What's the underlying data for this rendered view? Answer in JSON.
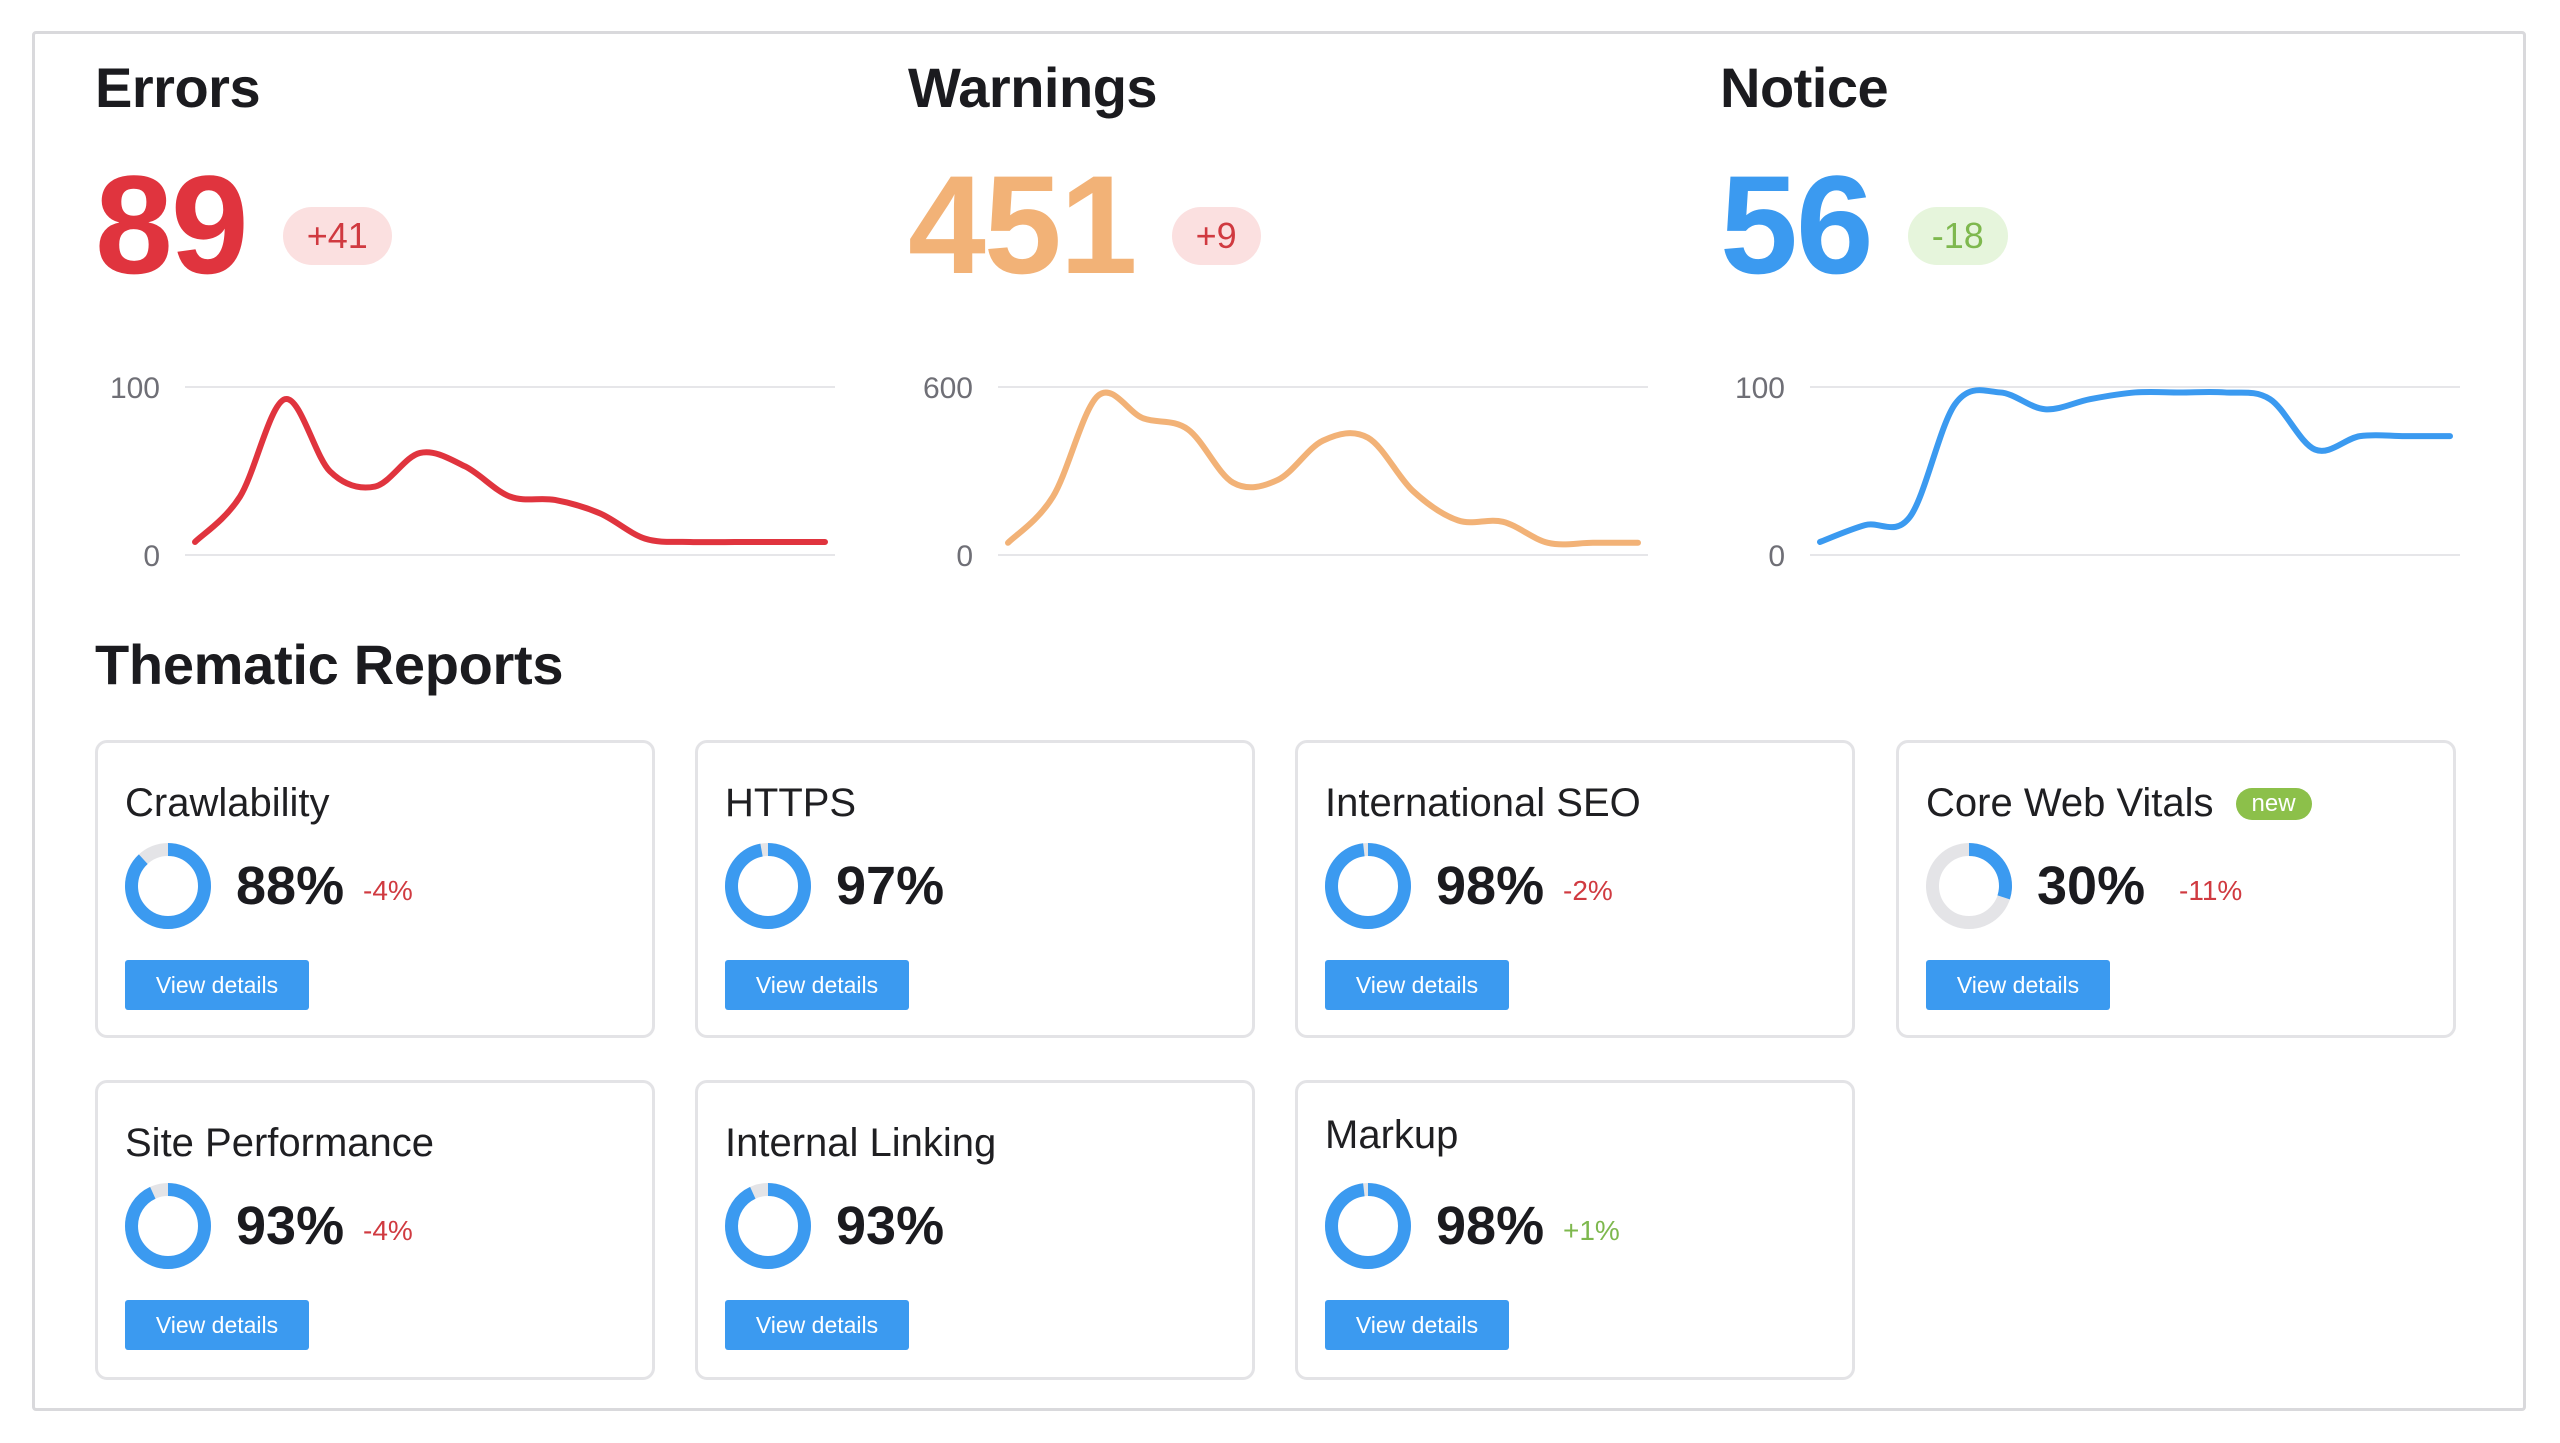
{
  "metrics": [
    {
      "title": "Errors",
      "value": "89",
      "delta": "+41",
      "color": "#e0343e",
      "badge_bg": "#fbe0e0",
      "badge_fg": "#d03a40",
      "y_ticks": [
        "100",
        "0"
      ]
    },
    {
      "title": "Warnings",
      "value": "451",
      "delta": "+9",
      "color": "#f2b277",
      "badge_bg": "#fbe0e0",
      "badge_fg": "#d03a40",
      "y_ticks": [
        "600",
        "0"
      ]
    },
    {
      "title": "Notice",
      "value": "56",
      "delta": "-18",
      "color": "#3b9af0",
      "badge_bg": "#e6f5dc",
      "badge_fg": "#7eb84e",
      "y_ticks": [
        "100",
        "0"
      ]
    }
  ],
  "chart_data": [
    {
      "type": "line",
      "title": "Errors",
      "ylim": [
        0,
        100
      ],
      "x": [
        0,
        1,
        2,
        3,
        4,
        5,
        6,
        7,
        8,
        9,
        10,
        11,
        12,
        13,
        14
      ],
      "values": [
        3,
        30,
        88,
        45,
        36,
        56,
        48,
        30,
        28,
        20,
        5,
        3,
        3,
        3,
        3
      ]
    },
    {
      "type": "line",
      "title": "Warnings",
      "ylim": [
        0,
        600
      ],
      "x": [
        0,
        1,
        2,
        3,
        4,
        5,
        6,
        7,
        8,
        9,
        10,
        11,
        12,
        13,
        14
      ],
      "values": [
        15,
        180,
        540,
        460,
        420,
        230,
        240,
        380,
        390,
        200,
        95,
        90,
        15,
        15,
        15
      ]
    },
    {
      "type": "line",
      "title": "Notice",
      "ylim": [
        0,
        100
      ],
      "x": [
        0,
        1,
        2,
        3,
        4,
        5,
        6,
        7,
        8,
        9,
        10,
        11,
        12,
        13,
        14
      ],
      "values": [
        3,
        13,
        18,
        85,
        92,
        82,
        88,
        92,
        92,
        92,
        88,
        58,
        66,
        66,
        66
      ]
    }
  ],
  "section_title": "Thematic Reports",
  "reports": [
    {
      "name": "Crawlability",
      "pct": "88%",
      "pct_value": 88,
      "delta": "-4%",
      "delta_color": "#d03a40",
      "button": "View details",
      "is_new": false
    },
    {
      "name": "HTTPS",
      "pct": "97%",
      "pct_value": 97,
      "delta": "",
      "delta_color": "#d03a40",
      "button": "View details",
      "is_new": false
    },
    {
      "name": "International SEO",
      "pct": "98%",
      "pct_value": 98,
      "delta": "-2%",
      "delta_color": "#d03a40",
      "button": "View details",
      "is_new": false
    },
    {
      "name": "Core Web Vitals",
      "pct": "30%",
      "pct_value": 30,
      "delta": "-11%",
      "delta_color": "#d03a40",
      "button": "View details",
      "is_new": true,
      "badge": "new"
    },
    {
      "name": "Site Performance",
      "pct": "93%",
      "pct_value": 93,
      "delta": "-4%",
      "delta_color": "#d03a40",
      "button": "View details",
      "is_new": false
    },
    {
      "name": "Internal Linking",
      "pct": "93%",
      "pct_value": 93,
      "delta": "",
      "delta_color": "#d03a40",
      "button": "View details",
      "is_new": false
    },
    {
      "name": "Markup",
      "pct": "98%",
      "pct_value": 98,
      "delta": "+1%",
      "delta_color": "#7eb84e",
      "button": "View details",
      "is_new": false
    }
  ],
  "colors": {
    "accent": "#3b9af0",
    "donut_track": "#e4e4e7"
  }
}
